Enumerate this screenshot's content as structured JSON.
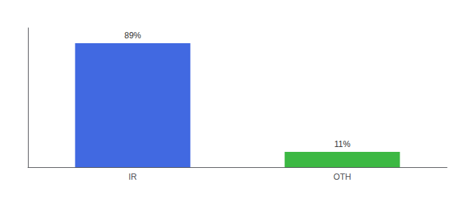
{
  "chart_data": {
    "type": "bar",
    "categories": [
      "IR",
      "OTH"
    ],
    "values": [
      89,
      11
    ],
    "value_labels": [
      "89%",
      "11%"
    ],
    "colors": [
      "#4169e1",
      "#3cb843"
    ],
    "ylim": [
      0,
      100
    ],
    "grid": false,
    "data_labels": true,
    "tick_labels": "x"
  }
}
